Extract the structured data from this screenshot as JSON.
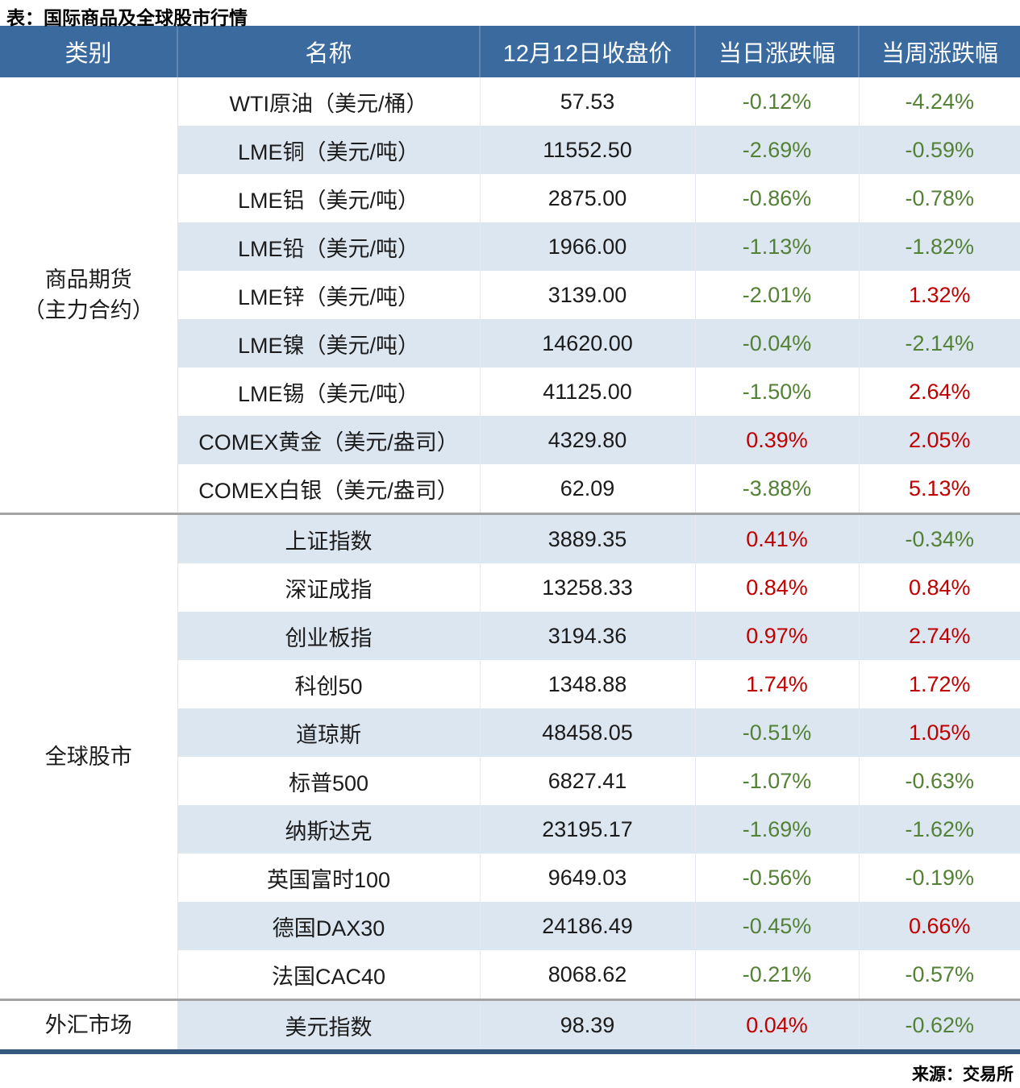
{
  "title": "表：国际商品及全球股市行情",
  "source": "来源：交易所",
  "colors": {
    "header_bg": "#3a6a9e",
    "header_text": "#ffffff",
    "row_alt_bg": "#dce6f1",
    "positive_red": "#c00000",
    "negative_green": "#538135",
    "section_divider": "#a3a3a3",
    "table_bottom_border": "#35597e"
  },
  "table": {
    "headers": [
      "类别",
      "名称",
      "12月12日收盘价",
      "当日涨跌幅",
      "当周涨跌幅"
    ],
    "sections": [
      {
        "category_lines": [
          "商品期货",
          "（主力合约）"
        ],
        "rows": [
          {
            "name": "WTI原油（美元/桶）",
            "close": "57.53",
            "day": "-0.12%",
            "week": "-4.24%"
          },
          {
            "name": "LME铜（美元/吨）",
            "close": "11552.50",
            "day": "-2.69%",
            "week": "-0.59%"
          },
          {
            "name": "LME铝（美元/吨）",
            "close": "2875.00",
            "day": "-0.86%",
            "week": "-0.78%"
          },
          {
            "name": "LME铅（美元/吨）",
            "close": "1966.00",
            "day": "-1.13%",
            "week": "-1.82%"
          },
          {
            "name": "LME锌（美元/吨）",
            "close": "3139.00",
            "day": "-2.01%",
            "week": "1.32%"
          },
          {
            "name": "LME镍（美元/吨）",
            "close": "14620.00",
            "day": "-0.04%",
            "week": "-2.14%"
          },
          {
            "name": "LME锡（美元/吨）",
            "close": "41125.00",
            "day": "-1.50%",
            "week": "2.64%"
          },
          {
            "name": "COMEX黄金（美元/盎司）",
            "close": "4329.80",
            "day": "0.39%",
            "week": "2.05%"
          },
          {
            "name": "COMEX白银（美元/盎司）",
            "close": "62.09",
            "day": "-3.88%",
            "week": "5.13%"
          }
        ]
      },
      {
        "category_lines": [
          "全球股市"
        ],
        "rows": [
          {
            "name": "上证指数",
            "close": "3889.35",
            "day": "0.41%",
            "week": "-0.34%"
          },
          {
            "name": "深证成指",
            "close": "13258.33",
            "day": "0.84%",
            "week": "0.84%"
          },
          {
            "name": "创业板指",
            "close": "3194.36",
            "day": "0.97%",
            "week": "2.74%"
          },
          {
            "name": "科创50",
            "close": "1348.88",
            "day": "1.74%",
            "week": "1.72%"
          },
          {
            "name": "道琼斯",
            "close": "48458.05",
            "day": "-0.51%",
            "week": "1.05%"
          },
          {
            "name": "标普500",
            "close": "6827.41",
            "day": "-1.07%",
            "week": "-0.63%"
          },
          {
            "name": "纳斯达克",
            "close": "23195.17",
            "day": "-1.69%",
            "week": "-1.62%"
          },
          {
            "name": "英国富时100",
            "close": "9649.03",
            "day": "-0.56%",
            "week": "-0.19%"
          },
          {
            "name": "德国DAX30",
            "close": "24186.49",
            "day": "-0.45%",
            "week": "0.66%"
          },
          {
            "name": "法国CAC40",
            "close": "8068.62",
            "day": "-0.21%",
            "week": "-0.57%"
          }
        ]
      },
      {
        "category_lines": [
          "外汇市场"
        ],
        "rows": [
          {
            "name": "美元指数",
            "close": "98.39",
            "day": "0.04%",
            "week": "-0.62%"
          }
        ]
      }
    ]
  }
}
